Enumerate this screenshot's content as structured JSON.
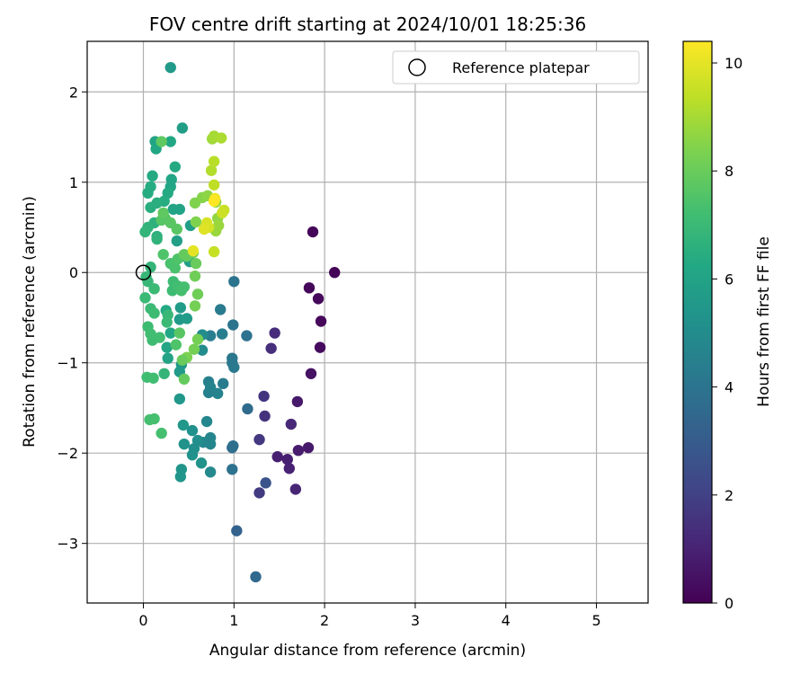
{
  "chart_data": {
    "type": "scatter",
    "title": "FOV centre drift starting at 2024/10/01 18:25:36",
    "xlabel": "Angular distance from reference (arcmin)",
    "ylabel": "Rotation from reference (arcmin)",
    "xlim": [
      -0.62,
      5.57
    ],
    "ylim": [
      -3.66,
      2.56
    ],
    "xticks": [
      0,
      1,
      2,
      3,
      4,
      5
    ],
    "yticks": [
      -3,
      -2,
      -1,
      0,
      1,
      2
    ],
    "grid": true,
    "legend": {
      "placement": "top-right",
      "label": "Reference platepar"
    },
    "reference_point": {
      "x": 0,
      "y": 0
    },
    "colorbar": {
      "label": "Hours from first FF file",
      "colormap": "viridis",
      "range": [
        0,
        10.4
      ],
      "ticks": [
        0,
        2,
        4,
        6,
        8,
        10
      ]
    },
    "points": [
      {
        "x": 1.87,
        "y": 0.45,
        "c": 0.1
      },
      {
        "x": 2.11,
        "y": 0.0,
        "c": 0.1
      },
      {
        "x": 1.83,
        "y": -0.17,
        "c": 0.2
      },
      {
        "x": 1.93,
        "y": -0.29,
        "c": 0.2
      },
      {
        "x": 1.96,
        "y": -0.54,
        "c": 0.2
      },
      {
        "x": 1.95,
        "y": -0.83,
        "c": 0.3
      },
      {
        "x": 1.85,
        "y": -1.12,
        "c": 0.5
      },
      {
        "x": 1.7,
        "y": -1.43,
        "c": 0.7
      },
      {
        "x": 1.82,
        "y": -1.94,
        "c": 0.7
      },
      {
        "x": 1.71,
        "y": -1.97,
        "c": 0.8
      },
      {
        "x": 1.48,
        "y": -2.04,
        "c": 0.9
      },
      {
        "x": 1.59,
        "y": -2.07,
        "c": 0.9
      },
      {
        "x": 1.61,
        "y": -2.17,
        "c": 1.0
      },
      {
        "x": 1.68,
        "y": -2.4,
        "c": 1.1
      },
      {
        "x": 1.63,
        "y": -1.68,
        "c": 1.2
      },
      {
        "x": 1.45,
        "y": -0.67,
        "c": 1.3
      },
      {
        "x": 1.41,
        "y": -0.84,
        "c": 1.4
      },
      {
        "x": 1.34,
        "y": -1.59,
        "c": 1.5
      },
      {
        "x": 1.33,
        "y": -1.37,
        "c": 1.6
      },
      {
        "x": 1.28,
        "y": -1.85,
        "c": 1.7
      },
      {
        "x": 1.28,
        "y": -2.44,
        "c": 1.8
      },
      {
        "x": 1.35,
        "y": -2.33,
        "c": 2.7
      },
      {
        "x": 1.03,
        "y": -2.86,
        "c": 3.3
      },
      {
        "x": 1.24,
        "y": -3.37,
        "c": 3.5
      },
      {
        "x": 1.15,
        "y": -1.51,
        "c": 3.6
      },
      {
        "x": 0.98,
        "y": -1.94,
        "c": 3.7
      },
      {
        "x": 0.99,
        "y": -1.92,
        "c": 3.8
      },
      {
        "x": 0.98,
        "y": -2.18,
        "c": 3.9
      },
      {
        "x": 1.14,
        "y": -0.7,
        "c": 3.9
      },
      {
        "x": 0.99,
        "y": -0.58,
        "c": 4.0
      },
      {
        "x": 1.0,
        "y": -0.1,
        "c": 4.0
      },
      {
        "x": 0.98,
        "y": -0.95,
        "c": 4.1
      },
      {
        "x": 0.98,
        "y": -1.0,
        "c": 4.2
      },
      {
        "x": 1.0,
        "y": -1.05,
        "c": 4.2
      },
      {
        "x": 0.88,
        "y": -1.23,
        "c": 4.3
      },
      {
        "x": 0.85,
        "y": -0.41,
        "c": 4.3
      },
      {
        "x": 0.87,
        "y": -0.68,
        "c": 4.4
      },
      {
        "x": 0.74,
        "y": -0.7,
        "c": 4.4
      },
      {
        "x": 0.72,
        "y": -1.21,
        "c": 4.5
      },
      {
        "x": 0.72,
        "y": -1.33,
        "c": 4.5
      },
      {
        "x": 0.82,
        "y": -1.34,
        "c": 4.6
      },
      {
        "x": 0.74,
        "y": -1.27,
        "c": 4.6
      },
      {
        "x": 0.74,
        "y": -1.83,
        "c": 4.7
      },
      {
        "x": 0.74,
        "y": -1.9,
        "c": 4.7
      },
      {
        "x": 0.7,
        "y": -1.65,
        "c": 4.8
      },
      {
        "x": 0.66,
        "y": -1.88,
        "c": 4.8
      },
      {
        "x": 0.74,
        "y": -2.21,
        "c": 4.9
      },
      {
        "x": 0.65,
        "y": -0.69,
        "c": 5.0
      },
      {
        "x": 0.65,
        "y": -0.86,
        "c": 5.0
      },
      {
        "x": 0.6,
        "y": -1.86,
        "c": 5.1
      },
      {
        "x": 0.56,
        "y": -1.95,
        "c": 5.1
      },
      {
        "x": 0.54,
        "y": -1.75,
        "c": 5.2
      },
      {
        "x": 0.54,
        "y": -2.02,
        "c": 5.2
      },
      {
        "x": 0.64,
        "y": -2.11,
        "c": 5.3
      },
      {
        "x": 0.45,
        "y": -1.9,
        "c": 5.3
      },
      {
        "x": 0.42,
        "y": -2.18,
        "c": 5.4
      },
      {
        "x": 0.41,
        "y": -2.26,
        "c": 5.4
      },
      {
        "x": 0.44,
        "y": -1.69,
        "c": 5.5
      },
      {
        "x": 0.4,
        "y": -1.4,
        "c": 5.5
      },
      {
        "x": 0.42,
        "y": -1.02,
        "c": 5.5
      },
      {
        "x": 0.4,
        "y": -1.1,
        "c": 5.6
      },
      {
        "x": 0.4,
        "y": -0.52,
        "c": 5.6
      },
      {
        "x": 0.41,
        "y": -0.39,
        "c": 5.7
      },
      {
        "x": 0.48,
        "y": -0.51,
        "c": 5.7
      },
      {
        "x": 0.51,
        "y": 0.12,
        "c": 5.8
      },
      {
        "x": 0.52,
        "y": 0.52,
        "c": 5.8
      },
      {
        "x": 0.44,
        "y": 0.18,
        "c": 5.9
      },
      {
        "x": 0.37,
        "y": 0.35,
        "c": 5.9
      },
      {
        "x": 0.33,
        "y": 0.7,
        "c": 6.0
      },
      {
        "x": 0.4,
        "y": 0.7,
        "c": 6.0
      },
      {
        "x": 0.3,
        "y": 0.95,
        "c": 6.1
      },
      {
        "x": 0.31,
        "y": 1.03,
        "c": 6.1
      },
      {
        "x": 0.3,
        "y": 1.45,
        "c": 6.2
      },
      {
        "x": 0.3,
        "y": 2.27,
        "c": 5.6
      },
      {
        "x": 0.43,
        "y": 1.6,
        "c": 5.8
      },
      {
        "x": 0.35,
        "y": 1.17,
        "c": 6.3
      },
      {
        "x": 0.27,
        "y": 0.88,
        "c": 6.3
      },
      {
        "x": 0.23,
        "y": 0.79,
        "c": 6.4
      },
      {
        "x": 0.13,
        "y": 1.45,
        "c": 6.0
      },
      {
        "x": 0.14,
        "y": 1.37,
        "c": 6.2
      },
      {
        "x": 0.1,
        "y": 1.07,
        "c": 6.3
      },
      {
        "x": 0.08,
        "y": 0.95,
        "c": 6.4
      },
      {
        "x": 0.05,
        "y": 0.88,
        "c": 6.4
      },
      {
        "x": 0.08,
        "y": 0.72,
        "c": 6.5
      },
      {
        "x": 0.15,
        "y": 0.77,
        "c": 6.5
      },
      {
        "x": 0.12,
        "y": 0.55,
        "c": 6.6
      },
      {
        "x": 0.15,
        "y": 0.4,
        "c": 6.6
      },
      {
        "x": 0.15,
        "y": 0.37,
        "c": 6.7
      },
      {
        "x": 0.05,
        "y": 0.5,
        "c": 6.7
      },
      {
        "x": 0.02,
        "y": 0.45,
        "c": 6.8
      },
      {
        "x": 0.08,
        "y": 0.06,
        "c": 6.8
      },
      {
        "x": 0.03,
        "y": -0.05,
        "c": 6.9
      },
      {
        "x": 0.05,
        "y": -0.1,
        "c": 6.9
      },
      {
        "x": 0.12,
        "y": -0.18,
        "c": 7.0
      },
      {
        "x": 0.02,
        "y": -0.28,
        "c": 7.0
      },
      {
        "x": 0.08,
        "y": -0.4,
        "c": 7.0
      },
      {
        "x": 0.12,
        "y": -0.45,
        "c": 7.1
      },
      {
        "x": 0.05,
        "y": -0.6,
        "c": 7.1
      },
      {
        "x": 0.1,
        "y": -0.75,
        "c": 7.1
      },
      {
        "x": 0.08,
        "y": -0.68,
        "c": 7.2
      },
      {
        "x": 0.18,
        "y": -0.72,
        "c": 7.2
      },
      {
        "x": 0.04,
        "y": -1.16,
        "c": 7.2
      },
      {
        "x": 0.11,
        "y": -1.17,
        "c": 7.2
      },
      {
        "x": 0.07,
        "y": -1.63,
        "c": 7.3
      },
      {
        "x": 0.12,
        "y": -1.62,
        "c": 7.3
      },
      {
        "x": 0.2,
        "y": -1.78,
        "c": 7.3
      },
      {
        "x": 0.23,
        "y": -1.12,
        "c": 6.8
      },
      {
        "x": 0.27,
        "y": -0.95,
        "c": 6.0
      },
      {
        "x": 0.26,
        "y": -0.83,
        "c": 6.1
      },
      {
        "x": 0.3,
        "y": -0.67,
        "c": 6.2
      },
      {
        "x": 0.25,
        "y": -0.42,
        "c": 6.3
      },
      {
        "x": 0.27,
        "y": -0.47,
        "c": 6.9
      },
      {
        "x": 0.26,
        "y": -0.55,
        "c": 7.0
      },
      {
        "x": 0.32,
        "y": -0.2,
        "c": 7.1
      },
      {
        "x": 0.33,
        "y": -0.1,
        "c": 7.1
      },
      {
        "x": 0.38,
        "y": -0.15,
        "c": 7.2
      },
      {
        "x": 0.42,
        "y": -0.2,
        "c": 7.3
      },
      {
        "x": 0.45,
        "y": -0.16,
        "c": 7.3
      },
      {
        "x": 0.3,
        "y": 0.1,
        "c": 7.4
      },
      {
        "x": 0.35,
        "y": 0.05,
        "c": 7.4
      },
      {
        "x": 0.38,
        "y": 0.15,
        "c": 7.5
      },
      {
        "x": 0.22,
        "y": 0.2,
        "c": 7.5
      },
      {
        "x": 0.24,
        "y": 0.6,
        "c": 7.6
      },
      {
        "x": 0.2,
        "y": 0.58,
        "c": 7.6
      },
      {
        "x": 0.3,
        "y": 0.55,
        "c": 7.7
      },
      {
        "x": 0.37,
        "y": 0.48,
        "c": 7.7
      },
      {
        "x": 0.22,
        "y": 0.66,
        "c": 7.8
      },
      {
        "x": 0.2,
        "y": 1.45,
        "c": 7.8
      },
      {
        "x": 0.45,
        "y": 0.2,
        "c": 7.9
      },
      {
        "x": 0.48,
        "y": 0.18,
        "c": 7.9
      },
      {
        "x": 0.55,
        "y": 0.22,
        "c": 8.0
      },
      {
        "x": 0.58,
        "y": 0.1,
        "c": 8.0
      },
      {
        "x": 0.57,
        "y": -0.04,
        "c": 8.1
      },
      {
        "x": 0.6,
        "y": -0.24,
        "c": 8.1
      },
      {
        "x": 0.57,
        "y": -0.37,
        "c": 8.2
      },
      {
        "x": 0.6,
        "y": -0.74,
        "c": 8.2
      },
      {
        "x": 0.56,
        "y": -0.85,
        "c": 8.2
      },
      {
        "x": 0.48,
        "y": -0.94,
        "c": 8.3
      },
      {
        "x": 0.45,
        "y": -1.18,
        "c": 7.9
      },
      {
        "x": 0.43,
        "y": -0.97,
        "c": 8.0
      },
      {
        "x": 0.4,
        "y": -0.67,
        "c": 7.7
      },
      {
        "x": 0.36,
        "y": -0.8,
        "c": 7.5
      },
      {
        "x": 0.58,
        "y": 0.56,
        "c": 8.4
      },
      {
        "x": 0.57,
        "y": 0.77,
        "c": 8.4
      },
      {
        "x": 0.65,
        "y": 0.83,
        "c": 8.5
      },
      {
        "x": 0.71,
        "y": 0.85,
        "c": 8.6
      },
      {
        "x": 0.8,
        "y": 0.78,
        "c": 8.7
      },
      {
        "x": 0.82,
        "y": 0.6,
        "c": 8.7
      },
      {
        "x": 0.83,
        "y": 0.52,
        "c": 8.8
      },
      {
        "x": 0.8,
        "y": 0.46,
        "c": 8.8
      },
      {
        "x": 0.76,
        "y": 1.48,
        "c": 8.9
      },
      {
        "x": 0.78,
        "y": 1.51,
        "c": 9.0
      },
      {
        "x": 0.86,
        "y": 1.49,
        "c": 9.1
      },
      {
        "x": 0.75,
        "y": 1.13,
        "c": 9.2
      },
      {
        "x": 0.78,
        "y": 1.23,
        "c": 9.3
      },
      {
        "x": 0.78,
        "y": 0.97,
        "c": 9.4
      },
      {
        "x": 0.89,
        "y": 0.69,
        "c": 9.5
      },
      {
        "x": 0.87,
        "y": 0.66,
        "c": 9.6
      },
      {
        "x": 0.72,
        "y": 0.5,
        "c": 9.7
      },
      {
        "x": 0.7,
        "y": 0.55,
        "c": 9.8
      },
      {
        "x": 0.67,
        "y": 0.48,
        "c": 9.9
      },
      {
        "x": 0.55,
        "y": 0.24,
        "c": 10.0
      },
      {
        "x": 0.78,
        "y": 0.23,
        "c": 9.5
      },
      {
        "x": 0.79,
        "y": 0.82,
        "c": 10.2
      },
      {
        "x": 0.78,
        "y": 0.79,
        "c": 10.4
      }
    ]
  }
}
